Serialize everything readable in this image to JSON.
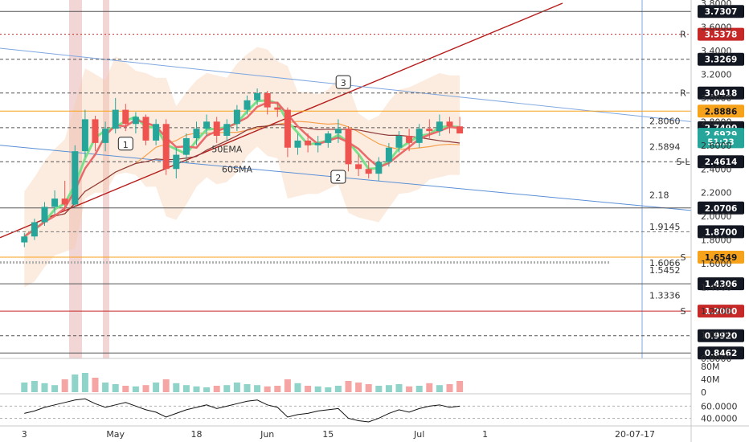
{
  "chart_data": {
    "type": "candlestick",
    "price_axis": {
      "ylim": [
        0.8,
        3.8
      ],
      "ticks": [
        "3.8000",
        "3.6000",
        "3.4000",
        "3.2000",
        "3.0000",
        "2.8000",
        "2.6000",
        "2.4000",
        "2.2000",
        "2.0000",
        "1.8000",
        "1.6000",
        "1.4000",
        "1.2000",
        "1.0000",
        "0.8000"
      ],
      "tick_values": [
        3.8,
        3.6,
        3.4,
        3.2,
        3.0,
        2.8,
        2.6,
        2.4,
        2.2,
        2.0,
        1.8,
        1.6,
        1.4,
        1.2,
        1.0,
        0.8
      ]
    },
    "time_axis": {
      "labels": [
        "3",
        "May",
        "18",
        "Jun",
        "15",
        "Jul",
        "1"
      ],
      "positions": [
        0.0,
        9.0,
        17.0,
        24.0,
        30.0,
        39.0,
        45.5
      ],
      "cursor_label": "20-07-17"
    },
    "price_tags": [
      {
        "text": "3.7307",
        "value": 3.7307,
        "color": "#131722",
        "text_color": "#ffffff",
        "line": "solid",
        "line_color": "#555555"
      },
      {
        "text": "3.5378",
        "value": 3.5378,
        "color": "#c62828",
        "text_color": "#ffffff",
        "line": "dotted",
        "line_color": "#c62828",
        "marker": "R"
      },
      {
        "text": "3.3269",
        "value": 3.3269,
        "color": "#131722",
        "text_color": "#ffffff",
        "line": "dashed",
        "line_color": "#555555"
      },
      {
        "text": "3.0418",
        "value": 3.0418,
        "color": "#131722",
        "text_color": "#ffffff",
        "line": "dashed",
        "line_color": "#555555",
        "marker": "R"
      },
      {
        "text": "2.8886",
        "value": 2.8886,
        "color": "#f7a21b",
        "text_color": "#131722",
        "line": "solid",
        "line_color": "#f7a21b"
      },
      {
        "text": "2.7490",
        "value": 2.749,
        "color": "#131722",
        "text_color": "#ffffff",
        "line": "dashed",
        "line_color": "#555555"
      },
      {
        "text": "2.6929",
        "value": 2.6929,
        "color": "#26a69a",
        "text_color": "#ffffff",
        "line": "none",
        "line_color": "#26a69a"
      },
      {
        "text": "51:23",
        "value": 2.63,
        "color": "#26a69a",
        "text_color": "#ffffff",
        "line": "none",
        "line_color": "#26a69a"
      },
      {
        "text": "2.4614",
        "value": 2.4614,
        "color": "#131722",
        "text_color": "#ffffff",
        "line": "dashed",
        "line_color": "#555555",
        "marker": "S-L"
      },
      {
        "text": "2.0706",
        "value": 2.0706,
        "color": "#131722",
        "text_color": "#ffffff",
        "line": "solid",
        "line_color": "#555555"
      },
      {
        "text": "1.8700",
        "value": 1.87,
        "color": "#131722",
        "text_color": "#ffffff",
        "line": "dashed",
        "line_color": "#777777"
      },
      {
        "text": "1.6549",
        "value": 1.6549,
        "color": "#f7a21b",
        "text_color": "#131722",
        "line": "solid",
        "line_color": "#f7a21b",
        "marker": "S"
      },
      {
        "text": "1.4306",
        "value": 1.4306,
        "color": "#131722",
        "text_color": "#ffffff",
        "line": "solid",
        "line_color": "#555555"
      },
      {
        "text": "1.2000",
        "value": 1.2,
        "color": "#c62828",
        "text_color": "#ffffff",
        "line": "solid",
        "line_color": "#c62828",
        "marker": "S"
      },
      {
        "text": "0.9920",
        "value": 0.992,
        "color": "#131722",
        "text_color": "#ffffff",
        "line": "dashed",
        "line_color": "#555555"
      },
      {
        "text": "0.8462",
        "value": 0.8462,
        "color": "#131722",
        "text_color": "#ffffff",
        "line": "solid",
        "line_color": "#555555"
      }
    ],
    "level_labels": [
      {
        "text": "2.8060",
        "value": 2.806
      },
      {
        "text": "2.5894",
        "value": 2.5894
      },
      {
        "text": "2.18",
        "value": 2.18
      },
      {
        "text": "1.9145",
        "value": 1.9145
      },
      {
        "text": "1.6066",
        "value": 1.6066
      },
      {
        "text": "1.5452",
        "value": 1.5452
      },
      {
        "text": "1.3336",
        "value": 1.3336
      }
    ],
    "annotations": [
      {
        "text": "1",
        "bar": 10,
        "price": 2.6
      },
      {
        "text": "2",
        "bar": 31,
        "price": 2.32
      },
      {
        "text": "3",
        "bar": 31.5,
        "price": 3.12
      }
    ],
    "text_labels": [
      {
        "text": "50EMA",
        "bar": 18.5,
        "price": 2.54
      },
      {
        "text": "60SMA",
        "bar": 19.5,
        "price": 2.37
      }
    ],
    "candles": [
      [
        1.78,
        1.86,
        1.74,
        1.83
      ],
      [
        1.83,
        1.98,
        1.8,
        1.95
      ],
      [
        1.95,
        2.12,
        1.92,
        2.08
      ],
      [
        2.08,
        2.22,
        2.02,
        2.15
      ],
      [
        2.15,
        2.3,
        2.05,
        2.1
      ],
      [
        2.1,
        2.6,
        2.08,
        2.55
      ],
      [
        2.55,
        2.9,
        2.5,
        2.82
      ],
      [
        2.82,
        2.85,
        2.55,
        2.62
      ],
      [
        2.62,
        2.8,
        2.55,
        2.74
      ],
      [
        2.74,
        3.0,
        2.7,
        2.9
      ],
      [
        2.9,
        2.95,
        2.72,
        2.78
      ],
      [
        2.78,
        2.88,
        2.7,
        2.84
      ],
      [
        2.84,
        2.86,
        2.6,
        2.64
      ],
      [
        2.64,
        2.82,
        2.6,
        2.78
      ],
      [
        2.78,
        2.82,
        2.35,
        2.4
      ],
      [
        2.4,
        2.58,
        2.32,
        2.52
      ],
      [
        2.52,
        2.7,
        2.45,
        2.66
      ],
      [
        2.66,
        2.8,
        2.6,
        2.74
      ],
      [
        2.74,
        2.86,
        2.68,
        2.8
      ],
      [
        2.8,
        2.84,
        2.62,
        2.68
      ],
      [
        2.68,
        2.82,
        2.64,
        2.78
      ],
      [
        2.78,
        2.94,
        2.72,
        2.9
      ],
      [
        2.9,
        3.02,
        2.86,
        2.98
      ],
      [
        2.98,
        3.08,
        2.94,
        3.04
      ],
      [
        3.04,
        3.06,
        2.86,
        2.92
      ],
      [
        2.92,
        2.96,
        2.84,
        2.9
      ],
      [
        2.9,
        2.92,
        2.5,
        2.58
      ],
      [
        2.58,
        2.7,
        2.52,
        2.64
      ],
      [
        2.64,
        2.7,
        2.54,
        2.6
      ],
      [
        2.6,
        2.68,
        2.54,
        2.62
      ],
      [
        2.62,
        2.72,
        2.58,
        2.7
      ],
      [
        2.7,
        2.82,
        2.62,
        2.74
      ],
      [
        2.74,
        2.76,
        2.38,
        2.44
      ],
      [
        2.44,
        2.52,
        2.34,
        2.4
      ],
      [
        2.4,
        2.46,
        2.32,
        2.36
      ],
      [
        2.36,
        2.5,
        2.3,
        2.46
      ],
      [
        2.46,
        2.62,
        2.42,
        2.58
      ],
      [
        2.58,
        2.72,
        2.54,
        2.68
      ],
      [
        2.68,
        2.74,
        2.55,
        2.62
      ],
      [
        2.62,
        2.78,
        2.58,
        2.74
      ],
      [
        2.74,
        2.82,
        2.66,
        2.72
      ],
      [
        2.72,
        2.86,
        2.68,
        2.8
      ],
      [
        2.8,
        2.84,
        2.7,
        2.76
      ],
      [
        2.76,
        2.84,
        2.7,
        2.7
      ]
    ],
    "volume_axis": {
      "labels": [
        "80M",
        "40M",
        "0"
      ],
      "values": [
        80,
        40,
        0
      ]
    },
    "volume": [
      30,
      35,
      28,
      22,
      40,
      55,
      60,
      45,
      30,
      25,
      20,
      18,
      22,
      30,
      40,
      28,
      22,
      18,
      15,
      20,
      22,
      30,
      25,
      22,
      18,
      20,
      40,
      28,
      20,
      18,
      15,
      20,
      35,
      30,
      25,
      20,
      22,
      25,
      18,
      20,
      28,
      22,
      25,
      35
    ],
    "oscillator_axis": {
      "labels": [
        "60.0000",
        "40.0000"
      ],
      "values": [
        60,
        40
      ]
    },
    "oscillator": [
      48,
      52,
      58,
      62,
      66,
      70,
      72,
      64,
      58,
      62,
      66,
      60,
      54,
      50,
      42,
      48,
      54,
      58,
      62,
      56,
      60,
      64,
      68,
      70,
      62,
      58,
      42,
      46,
      48,
      52,
      54,
      56,
      40,
      36,
      34,
      40,
      48,
      54,
      50,
      56,
      60,
      62,
      58,
      60
    ]
  }
}
